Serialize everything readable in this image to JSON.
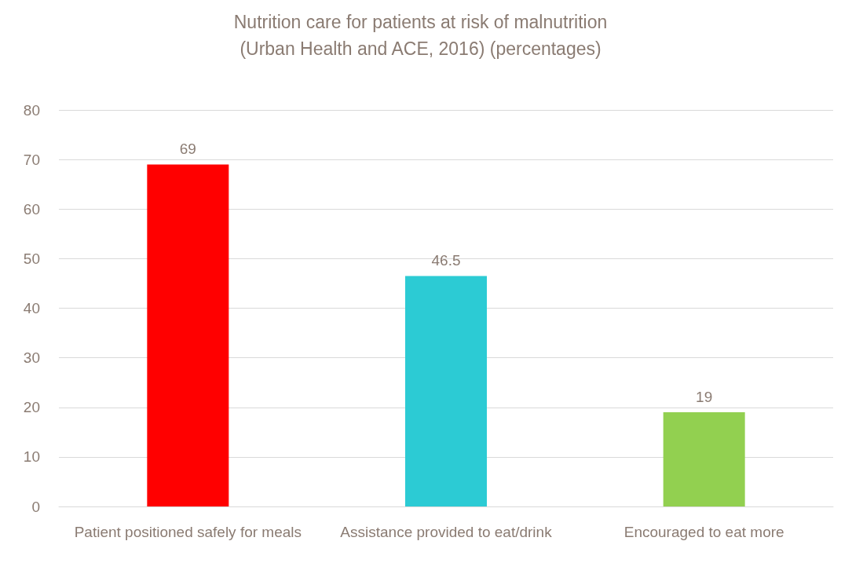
{
  "chart_data": {
    "type": "bar",
    "title": "Nutrition care for patients at risk of malnutrition\n(Urban Health and ACE, 2016) (percentages)",
    "categories": [
      "Patient positioned safely for meals",
      "Assistance provided to eat/drink",
      "Encouraged to eat more"
    ],
    "values": [
      69,
      46.5,
      19
    ],
    "colors": [
      "#ff0000",
      "#2ccbd4",
      "#92d050"
    ],
    "ylim": [
      0,
      80
    ],
    "yticks": [
      0,
      10,
      20,
      30,
      40,
      50,
      60,
      70,
      80
    ],
    "grid": "y",
    "data_labels": true
  }
}
